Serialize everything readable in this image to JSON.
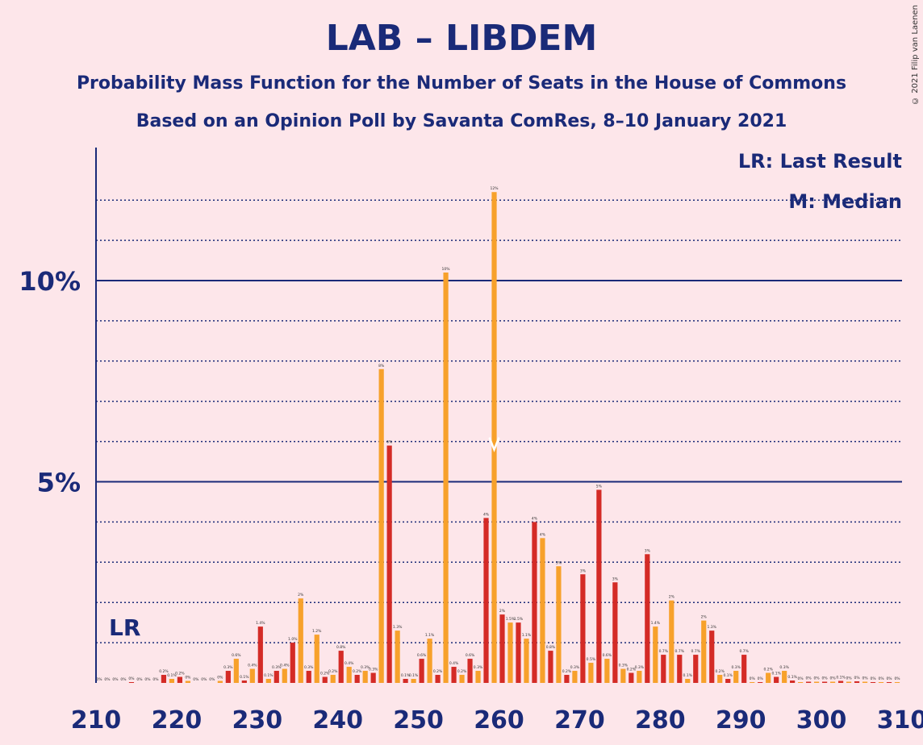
{
  "title": "LAB – LIBDEM",
  "subtitle1": "Probability Mass Function for the Number of Seats in the House of Commons",
  "subtitle2": "Based on an Opinion Poll by Savanta ComRes, 8–10 January 2021",
  "copyright": "© 2021 Filip van Laenen",
  "legend": {
    "lr": "LR: Last Result",
    "median": "M: Median"
  },
  "colors": {
    "red": "#d42b26",
    "orange": "#f7a12b",
    "axis": "#1a2a78",
    "background": "#fde6ea"
  },
  "chart_data": {
    "type": "bar",
    "xlabel": "",
    "ylabel": "",
    "xlim": [
      210,
      310
    ],
    "ylim": [
      0,
      13
    ],
    "x_ticks": [
      210,
      220,
      230,
      240,
      250,
      260,
      270,
      280,
      290,
      300,
      310
    ],
    "y_ticks": [
      {
        "value": 5,
        "label": "5%"
      },
      {
        "value": 10,
        "label": "10%"
      }
    ],
    "last_result": 213,
    "last_result_label": "LR",
    "median": 259,
    "seats": [
      210,
      211,
      212,
      213,
      214,
      215,
      216,
      217,
      218,
      219,
      220,
      221,
      222,
      223,
      224,
      225,
      226,
      227,
      228,
      229,
      230,
      231,
      232,
      233,
      234,
      235,
      236,
      237,
      238,
      239,
      240,
      241,
      242,
      243,
      244,
      245,
      246,
      247,
      248,
      249,
      250,
      251,
      252,
      253,
      254,
      255,
      256,
      257,
      258,
      259,
      260,
      261,
      262,
      263,
      264,
      265,
      266,
      267,
      268,
      269,
      270,
      271,
      272,
      273,
      274,
      275,
      276,
      277,
      278,
      279,
      280,
      281,
      282,
      283,
      284,
      285,
      286,
      287,
      288,
      289,
      290,
      291,
      292,
      293,
      294,
      295,
      296,
      297,
      298,
      299,
      300,
      301,
      302,
      303,
      304,
      305,
      306,
      307,
      308,
      309
    ],
    "values": [
      0,
      0,
      0,
      0,
      0.02,
      0,
      0,
      0,
      0.2,
      0.1,
      0.15,
      0.05,
      0,
      0,
      0,
      0.05,
      0.3,
      0.6,
      0.06,
      0.35,
      1.4,
      0.1,
      0.3,
      0.35,
      1.0,
      2.1,
      0.3,
      1.2,
      0.15,
      0.2,
      0.8,
      0.4,
      0.2,
      0.3,
      0.25,
      7.8,
      5.9,
      1.3,
      0.1,
      0.1,
      0.6,
      1.1,
      0.2,
      10.2,
      0.4,
      0.2,
      0.6,
      0.3,
      4.1,
      12.2,
      1.7,
      1.5,
      1.5,
      1.1,
      4.0,
      3.6,
      0.8,
      2.9,
      0.2,
      0.3,
      2.7,
      0.5,
      4.8,
      0.6,
      2.5,
      0.35,
      0.25,
      0.3,
      3.2,
      1.4,
      0.7,
      2.05,
      0.7,
      0.1,
      0.7,
      1.55,
      1.3,
      0.2,
      0.1,
      0.3,
      0.7,
      0.02,
      0.02,
      0.25,
      0.15,
      0.3,
      0.06,
      0.02,
      0.03,
      0.03,
      0.03,
      0.03,
      0.05,
      0.03,
      0.04,
      0.03,
      0.02,
      0.02,
      0.02,
      0.02
    ],
    "labels": [
      "0%",
      "0%",
      "0%",
      "0%",
      "0%",
      "0%",
      "0%",
      "0%",
      "0.2%",
      "0.1%",
      "0.2%",
      "0%",
      "0%",
      "0%",
      "0%",
      "0%",
      "0.3%",
      "0.6%",
      "0.1%",
      "0.4%",
      "1.4%",
      "0.1%",
      "0.3%",
      "0.4%",
      "1.0%",
      "2%",
      "0.3%",
      "1.2%",
      "0.2%",
      "0.2%",
      "0.8%",
      "0.4%",
      "0.2%",
      "0.3%",
      "0.3%",
      "8%",
      "6%",
      "1.3%",
      "0.1%",
      "0.1%",
      "0.6%",
      "1.1%",
      "0.2%",
      "10%",
      "0.4%",
      "0.2%",
      "0.6%",
      "0.3%",
      "4%",
      "12%",
      "2%",
      "1.5%",
      "1.5%",
      "1.1%",
      "4%",
      "4%",
      "0.8%",
      "3%",
      "0.2%",
      "0.3%",
      "3%",
      "0.5%",
      "5%",
      "0.6%",
      "3%",
      "0.3%",
      "0.2%",
      "0.3%",
      "3%",
      "1.4%",
      "0.7%",
      "2%",
      "0.7%",
      "0.1%",
      "0.7%",
      "2%",
      "1.3%",
      "0.2%",
      "0.1%",
      "0.3%",
      "0.7%",
      "0%",
      "0%",
      "0.2%",
      "0.1%",
      "0.3%",
      "0.1%",
      "0%",
      "0%",
      "0%",
      "0%",
      "0%",
      "0.1%",
      "0%",
      "0%",
      "0%",
      "0%",
      "0%",
      "0%",
      "0%"
    ]
  }
}
